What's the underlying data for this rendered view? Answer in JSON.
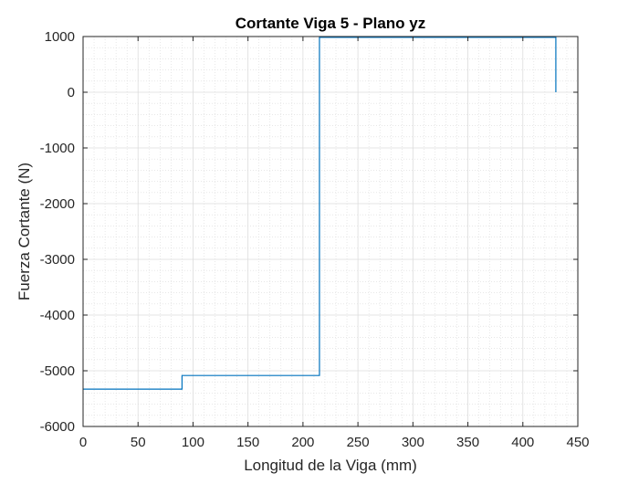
{
  "chart_data": {
    "type": "line",
    "title": "Cortante Viga 5 - Plano yz",
    "xlabel": "Longitud de la Viga (mm)",
    "ylabel": "Fuerza Cortante (N)",
    "xlim": [
      0,
      450
    ],
    "ylim": [
      -6000,
      1000
    ],
    "xticks": [
      0,
      50,
      100,
      150,
      200,
      250,
      300,
      350,
      400,
      450
    ],
    "xtick_labels": [
      "0",
      "50",
      "100",
      "150",
      "200",
      "250",
      "300",
      "350",
      "400",
      "450"
    ],
    "yticks": [
      1000,
      0,
      -1000,
      -2000,
      -3000,
      -4000,
      -5000,
      -6000
    ],
    "ytick_labels": [
      "1000",
      "0",
      "-1000",
      "-2000",
      "-3000",
      "-4000",
      "-5000",
      "-6000"
    ],
    "grid": true,
    "minor_grid": true,
    "legend": "none",
    "series": [
      {
        "color": "#0072BD",
        "x": [
          0,
          90,
          90,
          215,
          215,
          430,
          430
        ],
        "y": [
          -5330,
          -5330,
          -5085,
          -5085,
          985,
          985,
          0
        ]
      }
    ]
  }
}
